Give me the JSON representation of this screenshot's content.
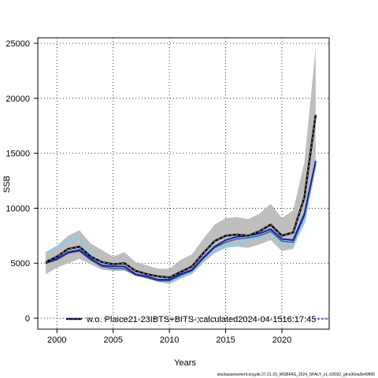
{
  "chart_data": {
    "type": "line",
    "title": "",
    "xlabel": "Years",
    "ylabel": "SSB",
    "xlim": [
      1998.3,
      2024.2
    ],
    "ylim": [
      -1000,
      25500
    ],
    "xticks": [
      2000,
      2005,
      2010,
      2015,
      2020
    ],
    "yticks": [
      0,
      5000,
      10000,
      15000,
      20000,
      25000
    ],
    "grid": true,
    "legend_position": "bottom",
    "x": [
      1999,
      2000,
      2001,
      2002,
      2003,
      2004,
      2005,
      2006,
      2007,
      2008,
      2009,
      2010,
      2011,
      2012,
      2013,
      2014,
      2015,
      2016,
      2017,
      2018,
      2019,
      2020,
      2021,
      2022,
      2023
    ],
    "series": [
      {
        "name": "w.o. Plaice21-23IBTS+BITS-;calculated2024-04-1516:17:45",
        "role": "estimate",
        "color": "#000000",
        "values": [
          5100,
          5600,
          6300,
          6500,
          5600,
          5100,
          4900,
          5000,
          4300,
          4000,
          3800,
          3700,
          4200,
          4700,
          5900,
          7000,
          7500,
          7600,
          7500,
          7900,
          8500,
          7500,
          7800,
          11000,
          18500
        ]
      },
      {
        "name": "",
        "role": "interval",
        "color": "#bebebe",
        "lower": [
          4000,
          4600,
          5000,
          5400,
          4900,
          4400,
          4300,
          4300,
          3900,
          3600,
          3300,
          3100,
          3600,
          4000,
          5000,
          5900,
          6400,
          6500,
          6400,
          6700,
          7100,
          6100,
          6300,
          8800,
          14200
        ],
        "upper": [
          6000,
          6600,
          7500,
          8000,
          6800,
          6200,
          5600,
          6000,
          5100,
          4800,
          4500,
          4500,
          5300,
          5800,
          7200,
          8500,
          9100,
          9200,
          9000,
          9500,
          10400,
          9100,
          9800,
          14200,
          24600
        ]
      },
      {
        "name": "",
        "role": "dark-blue",
        "color": "#2a1f8f",
        "values": [
          5000,
          5400,
          6000,
          6200,
          5400,
          4800,
          4700,
          4700,
          4000,
          3800,
          3500,
          3500,
          4000,
          4400,
          5500,
          6500,
          7100,
          7400,
          7500,
          7700,
          8100,
          7200,
          7100,
          9500,
          14300
        ]
      },
      {
        "name": "",
        "role": "blue",
        "color": "#2b62c4",
        "values": [
          5000,
          5300,
          5900,
          6100,
          5300,
          4700,
          4500,
          4500,
          3900,
          3700,
          3400,
          3400,
          3900,
          4300,
          5400,
          6400,
          6900,
          7200,
          7300,
          7500,
          7900,
          7000,
          6900,
          9300,
          14200
        ]
      },
      {
        "name": "",
        "role": "light-blue",
        "color": "#87ceeb",
        "values": [
          5900,
          6400,
          7000,
          7200,
          5800,
          5000,
          4800,
          4600,
          4000,
          3700,
          3400,
          3300,
          3700,
          4200,
          5300,
          6000,
          6500,
          6600,
          7100,
          7300,
          7900,
          6700,
          6700,
          8800,
          14000
        ]
      }
    ]
  },
  "footer": {
    "source_text": "stockassessment.org,ple.27.21-23_WGBFAS_2024_SPALY_v1,r18032_git:e36ea2b49f6f0"
  }
}
